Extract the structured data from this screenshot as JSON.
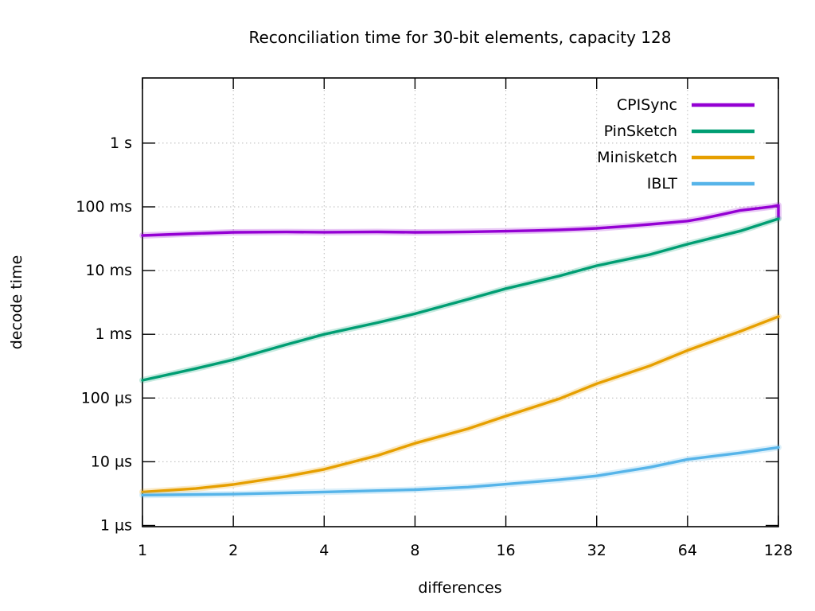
{
  "chart_data": {
    "type": "line",
    "title": "Reconciliation time for 30-bit elements, capacity 128",
    "xlabel": "differences",
    "ylabel": "decode time",
    "x_scale": "log2",
    "y_scale": "log10",
    "x_range": [
      1,
      128
    ],
    "y_range_us": [
      0.96,
      10500000
    ],
    "grid": true,
    "legend_position": "top-right",
    "x_ticks": [
      {
        "value": 1,
        "label": "1"
      },
      {
        "value": 2,
        "label": "2"
      },
      {
        "value": 4,
        "label": "4"
      },
      {
        "value": 8,
        "label": "8"
      },
      {
        "value": 16,
        "label": "16"
      },
      {
        "value": 32,
        "label": "32"
      },
      {
        "value": 64,
        "label": "64"
      },
      {
        "value": 128,
        "label": "128"
      }
    ],
    "y_ticks": [
      {
        "value_us": 1,
        "label": "1 µs"
      },
      {
        "value_us": 10,
        "label": "10 µs"
      },
      {
        "value_us": 100,
        "label": "100 µs"
      },
      {
        "value_us": 1000,
        "label": "1 ms"
      },
      {
        "value_us": 10000,
        "label": "10 ms"
      },
      {
        "value_us": 100000,
        "label": "100 ms"
      },
      {
        "value_us": 1000000,
        "label": "1 s"
      }
    ],
    "series": [
      {
        "name": "CPISync",
        "color": "#9400d3",
        "points_x_us": [
          [
            1,
            35500
          ],
          [
            1.5,
            38200
          ],
          [
            2,
            39800
          ],
          [
            3,
            40300
          ],
          [
            4,
            40000
          ],
          [
            5,
            40200
          ],
          [
            6,
            40400
          ],
          [
            8,
            39800
          ],
          [
            10,
            40100
          ],
          [
            12,
            40600
          ],
          [
            16,
            41500
          ],
          [
            20,
            42400
          ],
          [
            24,
            43400
          ],
          [
            28,
            44700
          ],
          [
            32,
            46000
          ],
          [
            40,
            49600
          ],
          [
            48,
            53200
          ],
          [
            56,
            56600
          ],
          [
            64,
            60000
          ],
          [
            72,
            66000
          ],
          [
            80,
            73000
          ],
          [
            96,
            88000
          ],
          [
            112,
            96000
          ],
          [
            122,
            101000
          ],
          [
            128,
            106000
          ],
          [
            128,
            68000
          ]
        ]
      },
      {
        "name": "PinSketch",
        "color": "#009e73",
        "points_x_us": [
          [
            1,
            190
          ],
          [
            1.5,
            290
          ],
          [
            2,
            400
          ],
          [
            3,
            690
          ],
          [
            4,
            1000
          ],
          [
            6,
            1520
          ],
          [
            8,
            2100
          ],
          [
            12,
            3550
          ],
          [
            16,
            5200
          ],
          [
            24,
            8200
          ],
          [
            32,
            11900
          ],
          [
            48,
            17800
          ],
          [
            64,
            26000
          ],
          [
            96,
            42000
          ],
          [
            128,
            65000
          ]
        ]
      },
      {
        "name": "Minisketch",
        "color": "#e69f00",
        "points_x_us": [
          [
            1,
            3.35
          ],
          [
            1.5,
            3.8
          ],
          [
            2,
            4.4
          ],
          [
            3,
            5.9
          ],
          [
            4,
            7.6
          ],
          [
            6,
            12.5
          ],
          [
            8,
            19.5
          ],
          [
            12,
            33
          ],
          [
            16,
            52
          ],
          [
            24,
            97
          ],
          [
            32,
            168
          ],
          [
            48,
            320
          ],
          [
            64,
            560
          ],
          [
            96,
            1120
          ],
          [
            128,
            1900
          ]
        ]
      },
      {
        "name": "IBLT",
        "color": "#56b4e9",
        "points_x_us": [
          [
            1,
            3.0
          ],
          [
            2,
            3.1
          ],
          [
            4,
            3.35
          ],
          [
            8,
            3.65
          ],
          [
            12,
            4.0
          ],
          [
            16,
            4.45
          ],
          [
            24,
            5.2
          ],
          [
            32,
            6.0
          ],
          [
            48,
            8.2
          ],
          [
            64,
            10.9
          ],
          [
            96,
            13.8
          ],
          [
            128,
            16.8
          ]
        ]
      }
    ],
    "style": {
      "grid_color": "#b9b9b9",
      "axis_color": "#000000",
      "text_color": "#000000",
      "background": "#ffffff"
    }
  }
}
